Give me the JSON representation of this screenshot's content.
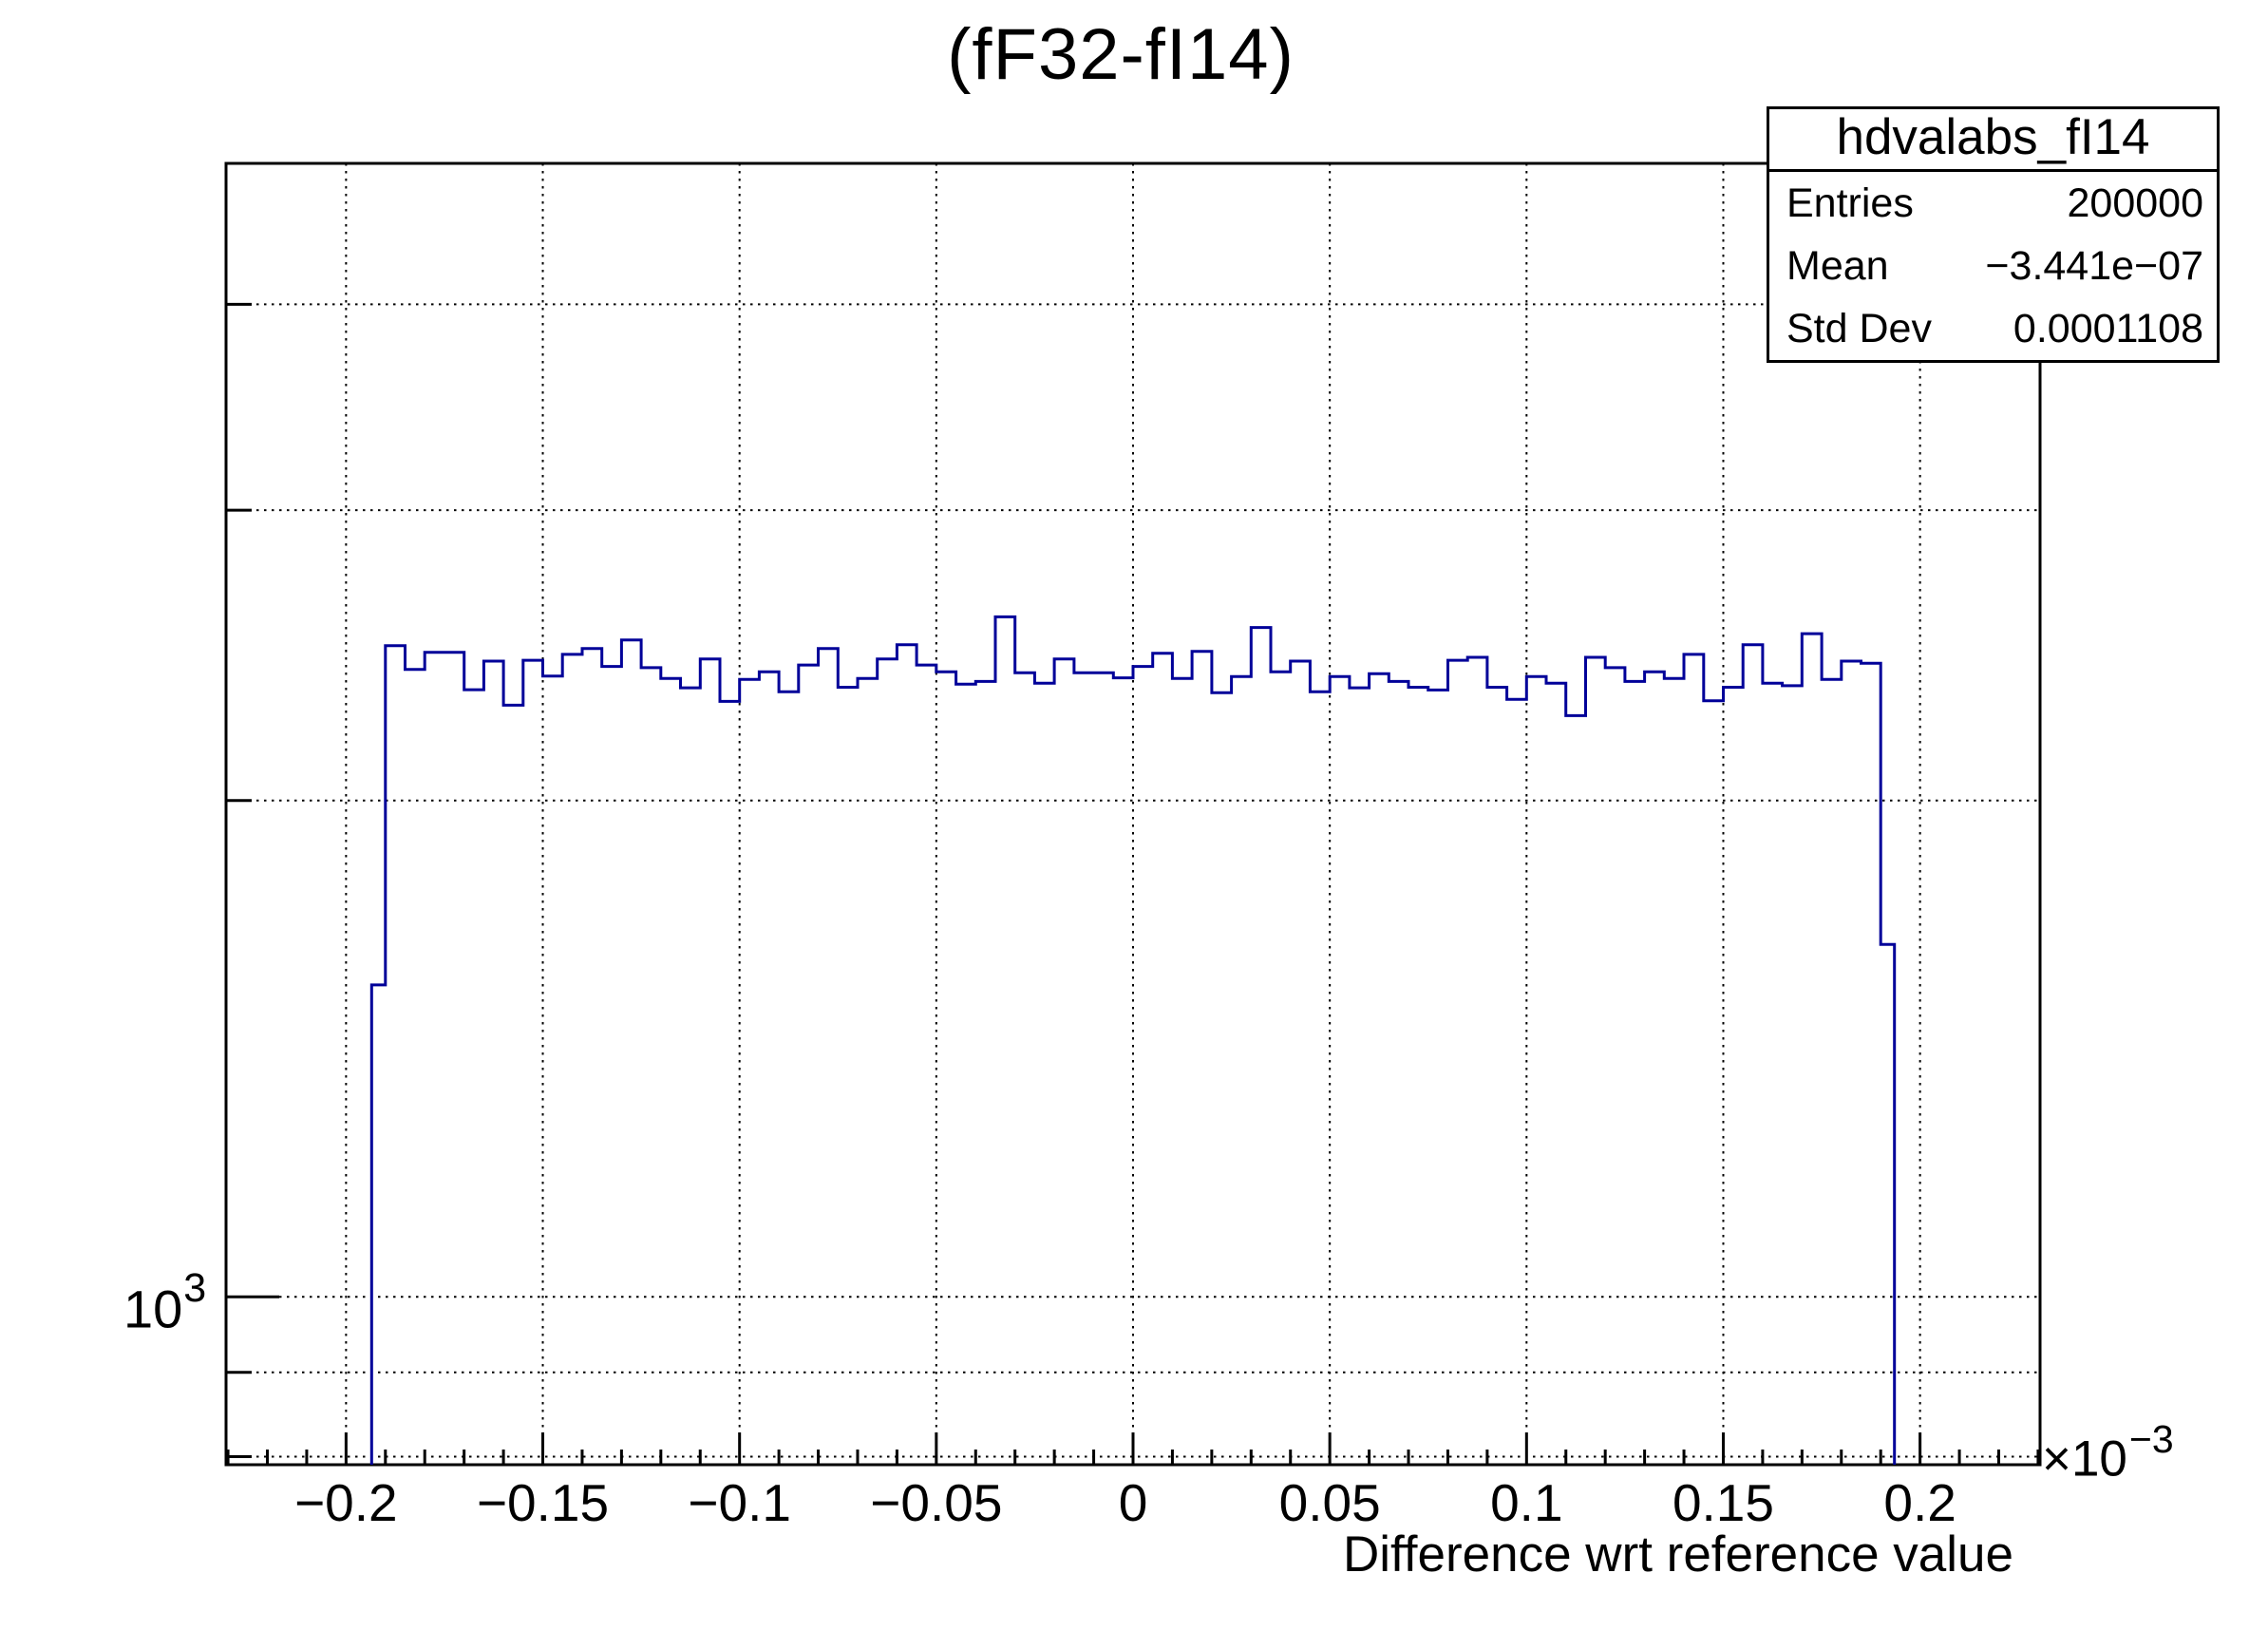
{
  "page": {
    "background": "#ffffff"
  },
  "title": "(fF32-fI14)",
  "stats_box": {
    "title": "hdvalabs_fI14",
    "rows": [
      {
        "label": "Entries",
        "value": "200000"
      },
      {
        "label": "Mean",
        "value": "−3.441e−07"
      },
      {
        "label": "Std Dev",
        "value": "0.0001108"
      }
    ]
  },
  "x_axis": {
    "title": "Difference wrt reference value",
    "scale_label": {
      "base": "×10",
      "exp": "−3"
    },
    "tick_labels": [
      "−0.2",
      "−0.15",
      "−0.1",
      "−0.05",
      "0",
      "0.05",
      "0.1",
      "0.15",
      "0.2"
    ]
  },
  "y_axis": {
    "power_label": {
      "base": "10",
      "exp": "3"
    }
  },
  "chart_data": {
    "type": "histogram-step",
    "title": "(fF32-fI14)",
    "xlabel": "Difference wrt reference value",
    "x_unit_factor": "1e-3",
    "xlim": [
      -0.2305,
      0.2305
    ],
    "y_scale": "log",
    "ylim": [
      791,
      4870
    ],
    "grid": true,
    "line_color": "#000099",
    "grid_color": "#000000",
    "x_major_ticks": [
      -0.2,
      -0.15,
      -0.1,
      -0.05,
      0,
      0.05,
      0.1,
      0.15,
      0.2
    ],
    "x_minor_step": 0.01,
    "y_gridlines": [
      800,
      900,
      1000,
      2000,
      3000,
      4000
    ],
    "y_major_ticks": [
      1000
    ],
    "y_minor_ticks": [
      800,
      900,
      2000,
      3000,
      4000
    ],
    "bins": {
      "first_edge": -0.1935,
      "second_edge": -0.19,
      "width": 0.005,
      "last_edge": 0.1935,
      "values": [
        1546,
        2483,
        2402,
        2460,
        2460,
        2335,
        2430,
        2285,
        2433,
        2380,
        2453,
        2473,
        2412,
        2503,
        2408,
        2372,
        2341,
        2437,
        2297,
        2369,
        2394,
        2328,
        2417,
        2473,
        2343,
        2372,
        2437,
        2486,
        2417,
        2394,
        2353,
        2362,
        2585,
        2391,
        2356,
        2437,
        2391,
        2391,
        2374,
        2412,
        2457,
        2372,
        2463,
        2325,
        2378,
        2547,
        2394,
        2430,
        2328,
        2378,
        2341,
        2388,
        2362,
        2343,
        2334,
        2433,
        2443,
        2343,
        2304,
        2378,
        2356,
        2252,
        2443,
        2408,
        2362,
        2394,
        2372,
        2453,
        2299,
        2343,
        2486,
        2356,
        2348,
        2525,
        2369,
        2430,
        2423,
        1636
      ]
    }
  }
}
